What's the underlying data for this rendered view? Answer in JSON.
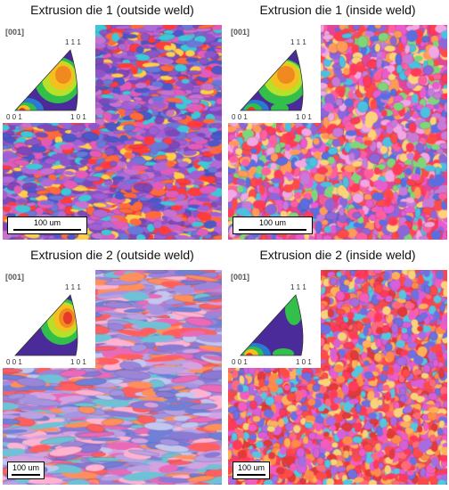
{
  "panels": [
    {
      "title": "Extrusion die 1 (outside weld)",
      "ipf": {
        "direction": "[001]",
        "corner_top": "1 1 1",
        "corner_left": "0 0 1",
        "corner_right": "1 0 1"
      },
      "scalebar": "100 um",
      "palette": [
        "#8e55c8",
        "#a060d4",
        "#7f48b8",
        "#b06ad6",
        "#c772d0",
        "#e35bb7",
        "#ff3b3b",
        "#ff6a3a",
        "#4d57c8",
        "#6a78d8",
        "#3ec7d8",
        "#ffcf49"
      ]
    },
    {
      "title": "Extrusion die 1 (inside weld)",
      "ipf": {
        "direction": "[001]",
        "corner_top": "1 1 1",
        "corner_left": "0 0 1",
        "corner_right": "1 0 1"
      },
      "scalebar": "100 um",
      "palette": [
        "#ff3b57",
        "#ff5f9e",
        "#e85cd0",
        "#c77ad8",
        "#8d67d8",
        "#5b6ee0",
        "#4bc0e0",
        "#ff9a5a",
        "#ffd27a",
        "#7fd67a",
        "#ff4a4a",
        "#f2a7e2"
      ]
    },
    {
      "title": "Extrusion die 2 (outside weld)",
      "ipf": {
        "direction": "[001]",
        "corner_top": "1 1 1",
        "corner_left": "0 0 1",
        "corner_right": "1 0 1"
      },
      "scalebar": "100 um",
      "palette": [
        "#9b85d8",
        "#a794e0",
        "#8a7ad4",
        "#b9a1e2",
        "#7080d6",
        "#d5a2e0",
        "#ff5f5f",
        "#ff8f5c",
        "#e86ab8",
        "#6fc2d6",
        "#ffb3d0",
        "#c2c7f0"
      ]
    },
    {
      "title": "Extrusion die 2 (inside weld)",
      "ipf": {
        "direction": "[001]",
        "corner_top": "1 1 1",
        "corner_left": "0 0 1",
        "corner_right": "1 0 1"
      },
      "scalebar": "100 um",
      "palette": [
        "#ff4a4a",
        "#ff3a5c",
        "#ff6a7a",
        "#f25cbf",
        "#d95fd9",
        "#a76ce0",
        "#6f6fe0",
        "#ff8a4a",
        "#ffb05a",
        "#53c7e0",
        "#f7d47a",
        "#e23a3a"
      ]
    }
  ]
}
